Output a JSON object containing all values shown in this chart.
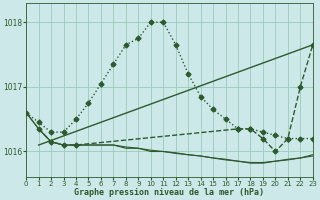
{
  "background_color": "#cce8e8",
  "grid_color": "#99ccbb",
  "line_color": "#2d5a2d",
  "title": "Graphe pression niveau de la mer (hPa)",
  "xlim": [
    0,
    23
  ],
  "ylim": [
    1015.6,
    1018.3
  ],
  "yticks": [
    1016,
    1017,
    1018
  ],
  "xticks": [
    0,
    1,
    2,
    3,
    4,
    5,
    6,
    7,
    8,
    9,
    10,
    11,
    12,
    13,
    14,
    15,
    16,
    17,
    18,
    19,
    20,
    21,
    22,
    23
  ],
  "series": [
    {
      "x": [
        0,
        1,
        2,
        3,
        4,
        5,
        6,
        7,
        8,
        9,
        10,
        11,
        12,
        13,
        14,
        15,
        16,
        17,
        18,
        19,
        20,
        21,
        22,
        23
      ],
      "y": [
        1016.6,
        1016.45,
        1016.3,
        1016.3,
        1016.5,
        1016.75,
        1017.05,
        1017.35,
        1017.65,
        1017.75,
        1018.0,
        1018.0,
        1017.65,
        1017.2,
        1016.85,
        1016.65,
        1016.5,
        1016.35,
        1016.35,
        1016.3,
        1016.25,
        1016.2,
        1016.2,
        1016.2
      ],
      "marker": "D",
      "markersize": 2.5,
      "linewidth": 1.0,
      "linestyle": "dotted"
    },
    {
      "x": [
        1,
        23
      ],
      "y": [
        1016.1,
        1017.65
      ],
      "marker": null,
      "markersize": 0,
      "linewidth": 1.0,
      "linestyle": "solid"
    },
    {
      "x": [
        0,
        1,
        2,
        3,
        4,
        5,
        6,
        7,
        8,
        9,
        10,
        11,
        12,
        13,
        14,
        15,
        16,
        17,
        18,
        19,
        20,
        21,
        22,
        23
      ],
      "y": [
        1016.6,
        1016.35,
        1016.15,
        1016.1,
        1016.1,
        1016.1,
        1016.1,
        1016.1,
        1016.05,
        1016.05,
        1016.0,
        1016.0,
        1015.97,
        1015.95,
        1015.93,
        1015.9,
        1015.88,
        1015.85,
        1015.83,
        1015.83,
        1015.85,
        1015.88,
        1015.9,
        1015.93
      ],
      "marker": null,
      "markersize": 0,
      "linewidth": 0.8,
      "linestyle": "solid"
    },
    {
      "x": [
        0,
        1,
        2,
        3,
        4,
        5,
        6,
        7,
        8,
        9,
        10,
        11,
        12,
        13,
        14,
        15,
        16,
        17,
        18,
        19,
        20,
        21,
        22,
        23
      ],
      "y": [
        1016.6,
        1016.35,
        1016.15,
        1016.1,
        1016.1,
        1016.1,
        1016.1,
        1016.1,
        1016.07,
        1016.05,
        1016.02,
        1016.0,
        1015.98,
        1015.95,
        1015.93,
        1015.9,
        1015.87,
        1015.85,
        1015.82,
        1015.82,
        1015.85,
        1015.87,
        1015.9,
        1015.95
      ],
      "marker": null,
      "markersize": 0,
      "linewidth": 0.8,
      "linestyle": "solid"
    },
    {
      "x": [
        1,
        2,
        3,
        4,
        17,
        18,
        19,
        20,
        21,
        22,
        23
      ],
      "y": [
        1016.35,
        1016.15,
        1016.1,
        1016.1,
        1016.35,
        1016.35,
        1016.2,
        1016.0,
        1016.2,
        1017.0,
        1017.65
      ],
      "marker": "D",
      "markersize": 2.5,
      "linewidth": 1.0,
      "linestyle": "dashed"
    }
  ]
}
